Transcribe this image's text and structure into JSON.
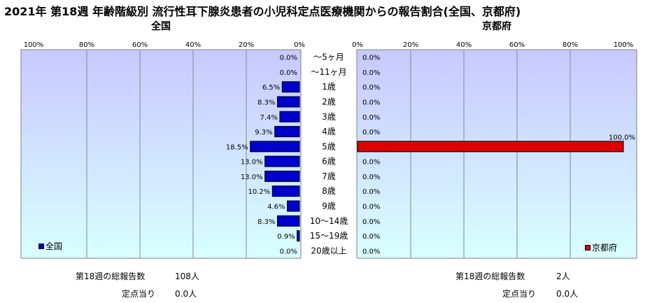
{
  "title": "2021年 第18週 年齢階級別 流行性耳下腺炎患者の小児科定点医療機関からの報告割合(全国、京都府)",
  "colors": {
    "left_bar": "#0000cc",
    "right_bar": "#dd0000",
    "plot_bg_top": "#c8c8ff",
    "plot_bg_bottom": "#d8ffff"
  },
  "chart_data": [
    {
      "type": "bar",
      "orientation": "horizontal",
      "direction": "right-to-left",
      "title": "全国",
      "legend": {
        "label": "全国",
        "position": "bottom-left"
      },
      "xlim": [
        0,
        100
      ],
      "xticks": [
        "100%",
        "80%",
        "60%",
        "40%",
        "20%",
        "0%"
      ],
      "categories": [
        "～5ヶ月",
        "～11ヶ月",
        "1歳",
        "2歳",
        "3歳",
        "4歳",
        "5歳",
        "6歳",
        "7歳",
        "8歳",
        "9歳",
        "10～14歳",
        "15～19歳",
        "20歳以上"
      ],
      "values": [
        0.0,
        0.0,
        6.5,
        8.3,
        7.4,
        9.3,
        18.5,
        13.0,
        13.0,
        10.2,
        4.6,
        8.3,
        0.9,
        0.0
      ],
      "labels": [
        "0.0%",
        "0.0%",
        "6.5%",
        "8.3%",
        "7.4%",
        "9.3%",
        "18.5%",
        "13.0%",
        "13.0%",
        "10.2%",
        "4.6%",
        "8.3%",
        "0.9%",
        "0.0%"
      ]
    },
    {
      "type": "bar",
      "orientation": "horizontal",
      "direction": "left-to-right",
      "title": "京都府",
      "legend": {
        "label": "京都府",
        "position": "bottom-right"
      },
      "xlim": [
        0,
        100
      ],
      "xticks": [
        "0%",
        "20%",
        "40%",
        "60%",
        "80%",
        "100%"
      ],
      "categories": [
        "～5ヶ月",
        "～11ヶ月",
        "1歳",
        "2歳",
        "3歳",
        "4歳",
        "5歳",
        "6歳",
        "7歳",
        "8歳",
        "9歳",
        "10～14歳",
        "15～19歳",
        "20歳以上"
      ],
      "values": [
        0.0,
        0.0,
        0.0,
        0.0,
        0.0,
        0.0,
        100.0,
        0.0,
        0.0,
        0.0,
        0.0,
        0.0,
        0.0,
        0.0
      ],
      "labels": [
        "0.0%",
        "0.0%",
        "0.0%",
        "0.0%",
        "0.0%",
        "0.0%",
        "100.0%",
        "0.0%",
        "0.0%",
        "0.0%",
        "0.0%",
        "0.0%",
        "0.0%",
        "0.0%"
      ]
    }
  ],
  "stats": {
    "left": {
      "total_label": "第18週の総報告数",
      "total_value": "108人",
      "per_label": "定点当り",
      "per_value": "0.0人"
    },
    "right": {
      "total_label": "第18週の総報告数",
      "total_value": "2人",
      "per_label": "定点当り",
      "per_value": "0.0人"
    }
  }
}
